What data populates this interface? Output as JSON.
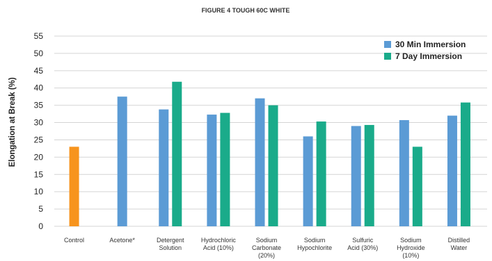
{
  "chart_data": {
    "type": "bar",
    "title": "FIGURE 4 TOUGH 60C WHITE",
    "ylabel": "Elongation at Break (%)",
    "xlabel": "",
    "ylim": [
      0,
      55
    ],
    "yticks": [
      0,
      5,
      10,
      15,
      20,
      25,
      30,
      35,
      40,
      45,
      50,
      55
    ],
    "grid": true,
    "legend_position": "top-right",
    "categories": [
      [
        "Control"
      ],
      [
        "Acetone*"
      ],
      [
        "Detergent",
        "Solution"
      ],
      [
        "Hydrochloric",
        "Acid (10%)"
      ],
      [
        "Sodium",
        "Carbonate",
        "(20%)"
      ],
      [
        "Sodium",
        "Hypochlorite"
      ],
      [
        "Sulfuric",
        "Acid (30%)"
      ],
      [
        "Sodium",
        "Hydroxide",
        "(10%)"
      ],
      [
        "Distilled",
        "Water"
      ]
    ],
    "control": {
      "value": 23,
      "color": "#f7941d"
    },
    "series": [
      {
        "name": "30 Min Immersion",
        "color": "#5b9bd5",
        "values": [
          null,
          37.5,
          33.8,
          32.3,
          37,
          26,
          29,
          30.7,
          32
        ]
      },
      {
        "name": "7 Day Immersion",
        "color": "#1aab8a",
        "values": [
          null,
          null,
          41.8,
          32.8,
          35,
          30.3,
          29.3,
          23,
          35.8
        ]
      }
    ]
  }
}
